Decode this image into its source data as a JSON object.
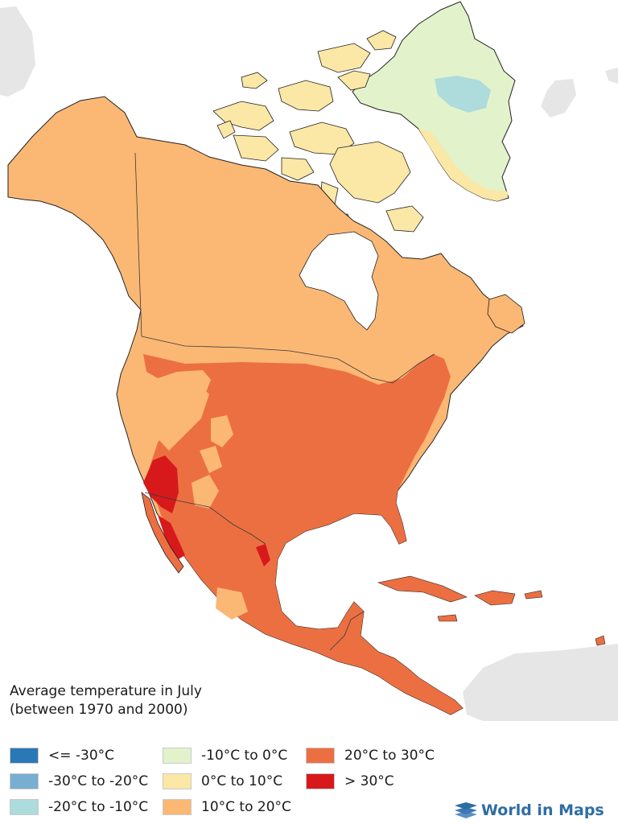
{
  "map": {
    "title_line1": "Average temperature in July",
    "title_line2": "(between 1970 and 2000)"
  },
  "legend": [
    {
      "id": "le-m30",
      "label": "<= -30°C",
      "color": "#2b78b6"
    },
    {
      "id": "m30-m20",
      "label": "-30°C to -20°C",
      "color": "#77aed2"
    },
    {
      "id": "m20-m10",
      "label": "-20°C to -10°C",
      "color": "#aedbdb"
    },
    {
      "id": "m10-0",
      "label": "-10°C to 0°C",
      "color": "#e2f3cb"
    },
    {
      "id": "0-10",
      "label": "0°C to 10°C",
      "color": "#fbe7a6"
    },
    {
      "id": "10-20",
      "label": "10°C to 20°C",
      "color": "#fbb874"
    },
    {
      "id": "20-30",
      "label": "20°C to 30°C",
      "color": "#ec6f42"
    },
    {
      "id": "gt30",
      "label": "> 30°C",
      "color": "#d7191c"
    }
  ],
  "colors": {
    "neighbouring_land": "#e6e6e6",
    "border_line": "#3a3a3a",
    "brand_blue": "#2e6da4"
  },
  "brand": {
    "name": "World in Maps",
    "icon": "globe-layers-icon"
  }
}
